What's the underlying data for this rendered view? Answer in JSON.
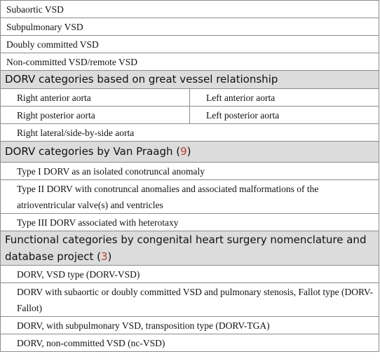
{
  "vsd_types": [
    "Subaortic VSD",
    "Subpulmonary VSD",
    "Doubly committed VSD",
    "Non-committed VSD/remote VSD"
  ],
  "great_vessel_section": {
    "heading": "DORV categories based on great vessel relationship",
    "pairs": [
      [
        "Right anterior aorta",
        "Left anterior aorta"
      ],
      [
        "Right posterior aorta",
        "Left posterior aorta"
      ]
    ],
    "single": "Right lateral/side-by-side aorta"
  },
  "van_praagh_section": {
    "heading": "DORV categories by Van Praagh (",
    "ref": "9",
    "heading_close": ")",
    "items": [
      "Type I DORV as an isolated conotruncal anomaly",
      "Type II DORV with conotruncal anomalies and associated malformations of the atrioventricular valve(s) and ventricles",
      "Type III DORV associated with heterotaxy"
    ]
  },
  "functional_section": {
    "heading": "Functional categories by congenital heart surgery nomenclature and database project (",
    "ref": "3",
    "heading_close": ")",
    "items": [
      "DORV, VSD type (DORV-VSD)",
      "DORV with subaortic or doubly committed VSD and pulmonary stenosis, Fallot type (DORV-Fallot)",
      "DORV, with subpulmonary VSD, transposition type (DORV-TGA)",
      "DORV, non-committed VSD (nc-VSD)"
    ]
  }
}
